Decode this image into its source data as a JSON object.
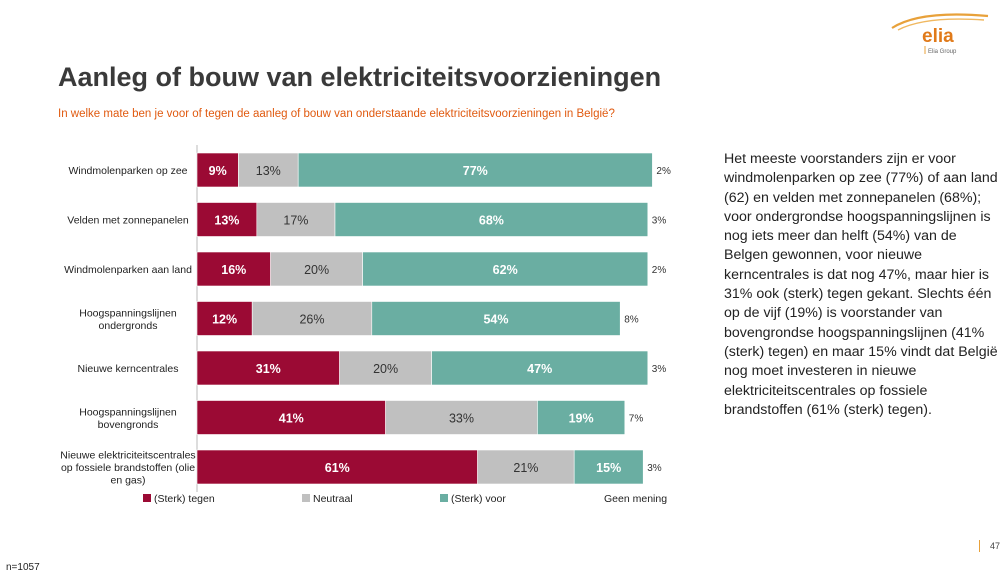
{
  "logo": {
    "name": "elia",
    "group": "Elia Group"
  },
  "title": "Aanleg of bouw van elektriciteitsvoorzieningen",
  "subtitle": "In welke mate ben je voor of tegen de aanleg of bouw van onderstaande elektriciteitsvoorzieningen in België?",
  "summary": "Het meeste voorstanders zijn er voor windmolenparken op zee (77%) of aan land (62) en velden met zonnepanelen (68%); voor ondergrondse hoogspanningslijnen is nog iets meer dan helft (54%) van de Belgen gewonnen, voor nieuwe kerncentrales is dat nog 47%, maar hier is 31% ook (sterk) tegen gekant. Slechts één op de vijf (19%) is voorstander van bovengrondse hoogspanningslijnen (41% (sterk) tegen) en maar 15% vindt dat België nog moet investeren in nieuwe elektriciteitscentrales op fossiele brandstoffen (61% (sterk) tegen).",
  "page_number": "47",
  "sample_size": "n=1057",
  "colors": {
    "tegen": "#9b0a34",
    "neutraal": "#c0c0c0",
    "voor": "#6aaea2",
    "title": "#3a3a3a",
    "subtitle": "#e05a10",
    "accent": "#e8a13a"
  },
  "chart_data": {
    "type": "bar",
    "orientation": "horizontal",
    "stacked": true,
    "xlim": [
      0,
      100
    ],
    "categories": [
      [
        "Windmolenparken op zee"
      ],
      [
        "Velden met zonnepanelen"
      ],
      [
        "Windmolenparken aan land"
      ],
      [
        "Hoogspanningslijnen",
        "ondergronds"
      ],
      [
        "Nieuwe kerncentrales"
      ],
      [
        "Hoogspanningslijnen",
        "bovengronds"
      ],
      [
        "Nieuwe elektriciteitscentrales",
        "op fossiele brandstoffen (olie",
        "en gas)"
      ]
    ],
    "series": [
      {
        "name": "(Sterk) tegen",
        "color": "#9b0a34",
        "values": [
          9,
          13,
          16,
          12,
          31,
          41,
          61
        ]
      },
      {
        "name": "Neutraal",
        "color": "#c0c0c0",
        "values": [
          13,
          17,
          20,
          26,
          20,
          33,
          21
        ]
      },
      {
        "name": "(Sterk) voor",
        "color": "#6aaea2",
        "values": [
          77,
          68,
          62,
          54,
          47,
          19,
          15
        ]
      },
      {
        "name": "Geen mening",
        "color": "none",
        "values": [
          2,
          3,
          2,
          8,
          3,
          7,
          3
        ]
      }
    ],
    "legend_position": "bottom"
  }
}
